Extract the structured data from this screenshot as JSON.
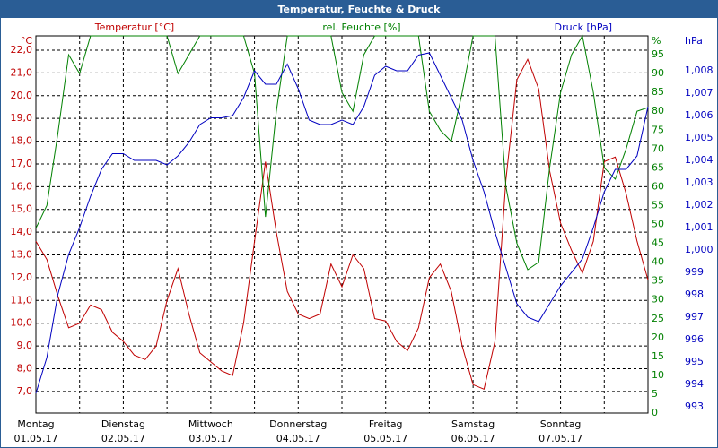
{
  "chart_data": {
    "type": "line",
    "title": "Temperatur, Feuchte & Druck",
    "x": [
      0,
      3,
      6,
      9,
      12,
      15,
      18,
      21,
      24,
      27,
      30,
      33,
      36,
      39,
      42,
      45,
      48,
      51,
      54,
      57,
      60,
      63,
      66,
      69,
      72,
      75,
      78,
      81,
      84,
      87,
      90,
      93,
      96,
      99,
      102,
      105,
      108,
      111,
      114,
      117,
      120,
      123,
      126,
      129,
      132,
      135,
      138,
      141,
      144,
      147,
      150,
      153,
      156,
      159,
      162,
      165,
      168
    ],
    "xlim": [
      0,
      168
    ],
    "xticks": [
      {
        "value": 0,
        "label": "Montag"
      },
      {
        "value": 24,
        "label": "Dienstag"
      },
      {
        "value": 48,
        "label": "Mittwoch"
      },
      {
        "value": 72,
        "label": "Donnerstag"
      },
      {
        "value": 96,
        "label": "Freitag"
      },
      {
        "value": 120,
        "label": "Samstag"
      },
      {
        "value": 144,
        "label": "Sonntag"
      }
    ],
    "xtick_dates": [
      "01.05.17",
      "02.05.17",
      "03.05.17",
      "04.05.17",
      "05.05.17",
      "06.05.17",
      "07.05.17"
    ],
    "xminorticks": [
      12,
      36,
      60,
      84,
      108,
      132,
      156
    ],
    "ylim": [
      6.05,
      22.63
    ],
    "yticks": [
      {
        "value": 7,
        "label": "7,0"
      },
      {
        "value": 8,
        "label": "8,0"
      },
      {
        "value": 9,
        "label": "9,0"
      },
      {
        "value": 10,
        "label": "10,0"
      },
      {
        "value": 11,
        "label": "11,0"
      },
      {
        "value": 12,
        "label": "12,0"
      },
      {
        "value": 13,
        "label": "13,0"
      },
      {
        "value": 14,
        "label": "14,0"
      },
      {
        "value": 15,
        "label": "15,0"
      },
      {
        "value": 16,
        "label": "16,0"
      },
      {
        "value": 17,
        "label": "17,0"
      },
      {
        "value": 18,
        "label": "18,0"
      },
      {
        "value": 19,
        "label": "19,0"
      },
      {
        "value": 20,
        "label": "20,0"
      },
      {
        "value": 21,
        "label": "21,0"
      },
      {
        "value": 22,
        "label": "22,0"
      }
    ],
    "y_unit": "°C",
    "y2lim": [
      0,
      100
    ],
    "y2ticks": [
      0,
      5,
      10,
      15,
      20,
      25,
      30,
      35,
      40,
      45,
      50,
      55,
      60,
      65,
      70,
      75,
      80,
      85,
      90,
      95
    ],
    "y2_unit": "%",
    "y3lim": [
      992.72,
      1009.56
    ],
    "y3ticks": [
      993,
      994,
      995,
      996,
      997,
      998,
      999,
      {
        "value": 1000,
        "label": "1,000"
      },
      {
        "value": 1001,
        "label": "1,001"
      },
      {
        "value": 1002,
        "label": "1,002"
      },
      {
        "value": 1003,
        "label": "1,003"
      },
      {
        "value": 1004,
        "label": "1,004"
      },
      {
        "value": 1005,
        "label": "1,005"
      },
      {
        "value": 1006,
        "label": "1,006"
      },
      {
        "value": 1007,
        "label": "1,007"
      },
      {
        "value": 1008,
        "label": "1,008"
      }
    ],
    "y3_unit": "hPa",
    "grid": true,
    "series": [
      {
        "name": "Temperatur [°C]",
        "color": "#c00000",
        "axis": "y",
        "values": [
          13.6,
          12.8,
          11.2,
          9.8,
          10.0,
          10.8,
          10.6,
          9.6,
          9.2,
          8.6,
          8.4,
          9.0,
          11.0,
          12.4,
          10.4,
          8.7,
          8.3,
          7.9,
          7.7,
          10.0,
          13.6,
          17.1,
          14.0,
          11.4,
          10.4,
          10.2,
          10.4,
          12.6,
          11.6,
          13.0,
          12.4,
          10.2,
          10.1,
          9.2,
          8.8,
          9.8,
          12.0,
          12.6,
          11.4,
          9.0,
          7.3,
          7.1,
          9.2,
          16.3,
          20.7,
          21.6,
          20.3,
          16.7,
          14.4,
          13.2,
          12.2,
          13.6,
          17.1,
          17.3,
          15.7,
          13.6,
          11.9
        ]
      },
      {
        "name": "rel. Feuchte [%]",
        "color": "#008000",
        "axis": "y2",
        "values": [
          49,
          55,
          74,
          95,
          90,
          100,
          100,
          100,
          100,
          100,
          100,
          100,
          100,
          90,
          95,
          100,
          100,
          100,
          100,
          100,
          90,
          52,
          80,
          100,
          100,
          100,
          100,
          100,
          85,
          80,
          95,
          100,
          100,
          100,
          100,
          100,
          80,
          75,
          72,
          85,
          100,
          100,
          100,
          60,
          45,
          38,
          40,
          65,
          85,
          95,
          100,
          85,
          65,
          62,
          70,
          80,
          81
        ]
      },
      {
        "name": "Druck [hPa]",
        "color": "#0000c0",
        "axis": "y3",
        "values": [
          993.6,
          995.2,
          998,
          999.8,
          1001,
          1002.4,
          1003.6,
          1004.3,
          1004.3,
          1004.0,
          1004.0,
          1004.0,
          1003.8,
          1004.2,
          1004.8,
          1005.6,
          1005.9,
          1005.9,
          1006.0,
          1006.8,
          1008.0,
          1007.4,
          1007.4,
          1008.3,
          1007.2,
          1005.8,
          1005.6,
          1005.6,
          1005.8,
          1005.6,
          1006.4,
          1007.8,
          1008.2,
          1008.0,
          1008.0,
          1008.7,
          1008.8,
          1007.8,
          1006.8,
          1005.8,
          1004.0,
          1002.6,
          1000.8,
          999.2,
          997.6,
          997.0,
          996.8,
          997.6,
          998.4,
          999.0,
          999.6,
          1001.0,
          1002.6,
          1003.6,
          1003.6,
          1004.2,
          1006.4
        ]
      }
    ]
  }
}
